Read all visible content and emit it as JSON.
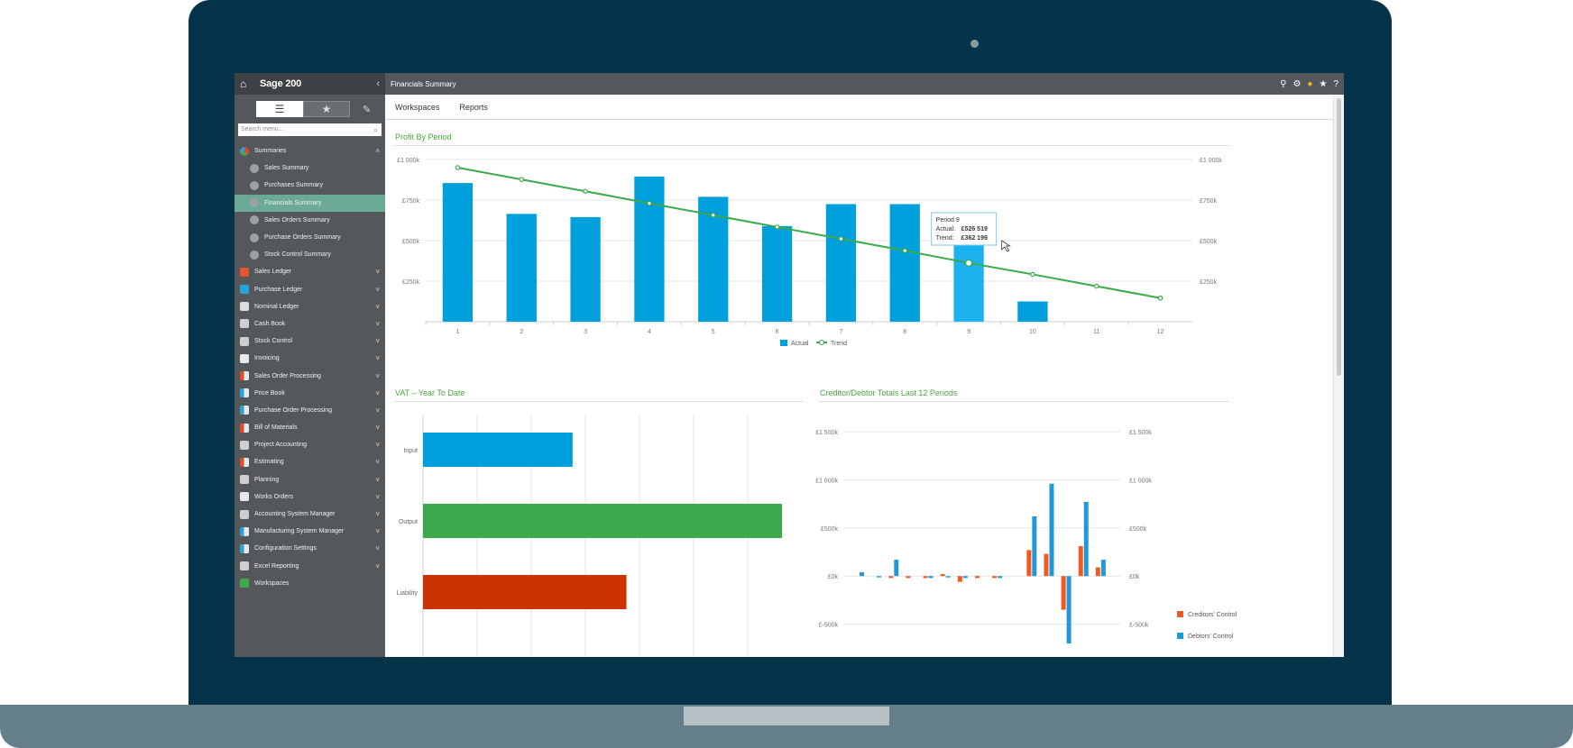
{
  "app": {
    "title": "Sage 200",
    "collapse_icon": "chevron-left-icon"
  },
  "window": {
    "title": "Financials Summary"
  },
  "tabs": [
    "Workspaces",
    "Reports"
  ],
  "sidebar": {
    "search_placeholder": "Search menu...",
    "items": [
      {
        "label": "Summaries",
        "icon": "pie-chart-icon",
        "expanded": true
      },
      {
        "label": "Sales Summary",
        "sub": true
      },
      {
        "label": "Purchases Summary",
        "sub": true
      },
      {
        "label": "Financials Summary",
        "sub": true,
        "selected": true
      },
      {
        "label": "Sales Orders Summary",
        "sub": true
      },
      {
        "label": "Purchase Orders Summary",
        "sub": true
      },
      {
        "label": "Stock Control Summary",
        "sub": true
      },
      {
        "label": "Sales Ledger"
      },
      {
        "label": "Purchase Ledger"
      },
      {
        "label": "Nominal Ledger"
      },
      {
        "label": "Cash Book"
      },
      {
        "label": "Stock Control"
      },
      {
        "label": "Invoicing"
      },
      {
        "label": "Sales Order Processing"
      },
      {
        "label": "Price Book"
      },
      {
        "label": "Purchase Order Processing"
      },
      {
        "label": "Bill of Materials"
      },
      {
        "label": "Project Accounting"
      },
      {
        "label": "Estimating"
      },
      {
        "label": "Planning"
      },
      {
        "label": "Works Orders"
      },
      {
        "label": "Accounting System Manager"
      },
      {
        "label": "Manufacturing System Manager"
      },
      {
        "label": "Configuration Settings"
      },
      {
        "label": "Excel Reporting"
      },
      {
        "label": "Workspaces",
        "no_chevron": true
      }
    ]
  },
  "colors": {
    "actual": "#00a0dc",
    "trend": "#3ba94c",
    "input": "#00a0dc",
    "output": "#3ba94c",
    "liability": "#cc3300",
    "creditors": "#f05a22",
    "debtors": "#1f9ad6",
    "sidebar": "#55585b",
    "selected": "#6aaa96",
    "bezel": "#05344a"
  },
  "chart_data": [
    {
      "type": "bar",
      "title": "Profit By Period",
      "categories": [
        "1",
        "2",
        "3",
        "4",
        "5",
        "6",
        "7",
        "8",
        "9",
        "10",
        "11",
        "12"
      ],
      "series": [
        {
          "name": "Actual",
          "values": [
            855000,
            665000,
            645000,
            895000,
            770000,
            590000,
            725000,
            725000,
            526519,
            125000,
            null,
            null
          ]
        },
        {
          "name": "Trend",
          "type": "line",
          "values": [
            950000,
            877000,
            804000,
            730000,
            657000,
            584000,
            511000,
            438000,
            362199,
            292000,
            219000,
            146000
          ]
        }
      ],
      "y_ticks": [
        "£1 000k",
        "£750k",
        "£500k",
        "£250k"
      ],
      "ylim": [
        0,
        1000000
      ],
      "legend": "bottom-center",
      "tooltip": {
        "label": "Period 9",
        "actual_label": "Actual:",
        "actual": "£526 519",
        "trend_label": "Trend:",
        "trend": "£362 199"
      }
    },
    {
      "type": "bar",
      "orientation": "horizontal",
      "title": "VAT – Year To Date",
      "categories": [
        "Input",
        "Output",
        "Liability"
      ],
      "values": [
        25,
        60,
        34
      ]
    },
    {
      "type": "bar",
      "title": "Creditor/Debtor Totals Last 12 Periods",
      "y_ticks": [
        "£1 500k",
        "£1 000k",
        "£500k",
        "£0k",
        "£-500k"
      ],
      "ylim": [
        -700000,
        1500000
      ],
      "legend": "right",
      "series": [
        {
          "name": "Creditors' Control",
          "values": [
            0,
            0,
            -20000,
            -20000,
            -20000,
            20000,
            -60000,
            -20000,
            -20000,
            0,
            270000,
            230000,
            -350000,
            310000,
            90000
          ]
        },
        {
          "name": "Debtors' Control",
          "values": [
            40000,
            -10000,
            170000,
            0,
            -20000,
            -10000,
            -20000,
            0,
            -20000,
            0,
            620000,
            960000,
            -700000,
            770000,
            170000
          ]
        }
      ]
    }
  ]
}
